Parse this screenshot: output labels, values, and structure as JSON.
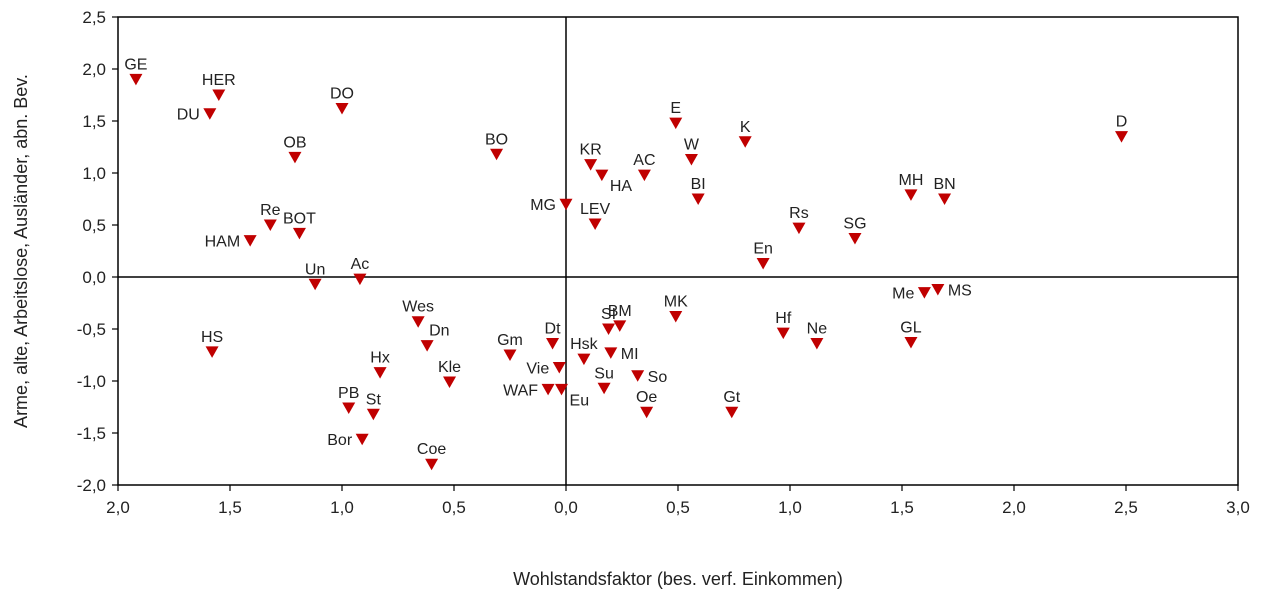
{
  "chart_data": {
    "type": "scatter",
    "xlabel": "Wohlstandsfaktor (bes. verf. Einkommen)",
    "ylabel": "Arme, alte, Arbeitslose, Ausländer, abn. Bev.",
    "x_ticks": [
      "2,0",
      "1,5",
      "1,0",
      "0,5",
      "0,0",
      "0,5",
      "1,0",
      "1,5",
      "2,0",
      "2,5",
      "3,0"
    ],
    "y_ticks": [
      "2,5",
      "2,0",
      "1,5",
      "1,0",
      "0,5",
      "0,0",
      "-0,5",
      "-1,0",
      "-1,5",
      "-2,0"
    ],
    "xlim": [
      -2.0,
      3.0
    ],
    "ylim": [
      -2.0,
      2.5
    ],
    "grid": false,
    "marker_color": "#c00000",
    "points": [
      {
        "label": "GE",
        "x": -1.92,
        "y": 1.9,
        "lp": "above"
      },
      {
        "label": "HER",
        "x": -1.55,
        "y": 1.75,
        "lp": "above"
      },
      {
        "label": "DU",
        "x": -1.59,
        "y": 1.57,
        "lp": "left"
      },
      {
        "label": "DO",
        "x": -1.0,
        "y": 1.62,
        "lp": "above"
      },
      {
        "label": "OB",
        "x": -1.21,
        "y": 1.15,
        "lp": "above"
      },
      {
        "label": "BO",
        "x": -0.31,
        "y": 1.18,
        "lp": "above"
      },
      {
        "label": "Re",
        "x": -1.32,
        "y": 0.5,
        "lp": "above"
      },
      {
        "label": "BOT",
        "x": -1.19,
        "y": 0.42,
        "lp": "above"
      },
      {
        "label": "HAM",
        "x": -1.41,
        "y": 0.35,
        "lp": "left"
      },
      {
        "label": "Un",
        "x": -1.12,
        "y": -0.07,
        "lp": "above"
      },
      {
        "label": "Ac",
        "x": -0.92,
        "y": -0.02,
        "lp": "above"
      },
      {
        "label": "HS",
        "x": -1.58,
        "y": -0.72,
        "lp": "above"
      },
      {
        "label": "Wes",
        "x": -0.66,
        "y": -0.43,
        "lp": "above"
      },
      {
        "label": "Dn",
        "x": -0.62,
        "y": -0.66,
        "lp": "aboveright"
      },
      {
        "label": "Hx",
        "x": -0.83,
        "y": -0.92,
        "lp": "above"
      },
      {
        "label": "Kle",
        "x": -0.52,
        "y": -1.01,
        "lp": "above"
      },
      {
        "label": "PB",
        "x": -0.97,
        "y": -1.26,
        "lp": "above"
      },
      {
        "label": "St",
        "x": -0.86,
        "y": -1.32,
        "lp": "above"
      },
      {
        "label": "Bor",
        "x": -0.91,
        "y": -1.56,
        "lp": "left"
      },
      {
        "label": "Coe",
        "x": -0.6,
        "y": -1.8,
        "lp": "above"
      },
      {
        "label": "Gm",
        "x": -0.25,
        "y": -0.75,
        "lp": "above"
      },
      {
        "label": "Dt",
        "x": -0.06,
        "y": -0.64,
        "lp": "above"
      },
      {
        "label": "Vie",
        "x": -0.03,
        "y": -0.87,
        "lp": "left"
      },
      {
        "label": "WAF",
        "x": -0.08,
        "y": -1.08,
        "lp": "left"
      },
      {
        "label": "Eu",
        "x": -0.02,
        "y": -1.08,
        "lp": "belowright"
      },
      {
        "label": "MG",
        "x": 0.0,
        "y": 0.7,
        "lp": "left"
      },
      {
        "label": "KR",
        "x": 0.11,
        "y": 1.08,
        "lp": "above"
      },
      {
        "label": "HA",
        "x": 0.16,
        "y": 0.98,
        "lp": "belowright"
      },
      {
        "label": "LEV",
        "x": 0.13,
        "y": 0.51,
        "lp": "above"
      },
      {
        "label": "AC",
        "x": 0.35,
        "y": 0.98,
        "lp": "above"
      },
      {
        "label": "E",
        "x": 0.49,
        "y": 1.48,
        "lp": "above"
      },
      {
        "label": "W",
        "x": 0.56,
        "y": 1.13,
        "lp": "above"
      },
      {
        "label": "BI",
        "x": 0.59,
        "y": 0.75,
        "lp": "above"
      },
      {
        "label": "K",
        "x": 0.8,
        "y": 1.3,
        "lp": "above"
      },
      {
        "label": "Rs",
        "x": 1.04,
        "y": 0.47,
        "lp": "above"
      },
      {
        "label": "En",
        "x": 0.88,
        "y": 0.13,
        "lp": "above"
      },
      {
        "label": "SG",
        "x": 1.29,
        "y": 0.37,
        "lp": "above"
      },
      {
        "label": "MH",
        "x": 1.54,
        "y": 0.79,
        "lp": "above"
      },
      {
        "label": "BN",
        "x": 1.69,
        "y": 0.75,
        "lp": "above"
      },
      {
        "label": "D",
        "x": 2.48,
        "y": 1.35,
        "lp": "above"
      },
      {
        "label": "SI",
        "x": 0.19,
        "y": -0.5,
        "lp": "above"
      },
      {
        "label": "BM",
        "x": 0.24,
        "y": -0.47,
        "lp": "above"
      },
      {
        "label": "Hsk",
        "x": 0.08,
        "y": -0.79,
        "lp": "above"
      },
      {
        "label": "MI",
        "x": 0.2,
        "y": -0.73,
        "lp": "right"
      },
      {
        "label": "Su",
        "x": 0.17,
        "y": -1.07,
        "lp": "above"
      },
      {
        "label": "So",
        "x": 0.32,
        "y": -0.95,
        "lp": "right"
      },
      {
        "label": "Oe",
        "x": 0.36,
        "y": -1.3,
        "lp": "above"
      },
      {
        "label": "MK",
        "x": 0.49,
        "y": -0.38,
        "lp": "above"
      },
      {
        "label": "Gt",
        "x": 0.74,
        "y": -1.3,
        "lp": "above"
      },
      {
        "label": "Hf",
        "x": 0.97,
        "y": -0.54,
        "lp": "above"
      },
      {
        "label": "Ne",
        "x": 1.12,
        "y": -0.64,
        "lp": "above"
      },
      {
        "label": "GL",
        "x": 1.54,
        "y": -0.63,
        "lp": "above"
      },
      {
        "label": "Me",
        "x": 1.6,
        "y": -0.15,
        "lp": "left"
      },
      {
        "label": "MS",
        "x": 1.66,
        "y": -0.12,
        "lp": "right"
      }
    ]
  }
}
